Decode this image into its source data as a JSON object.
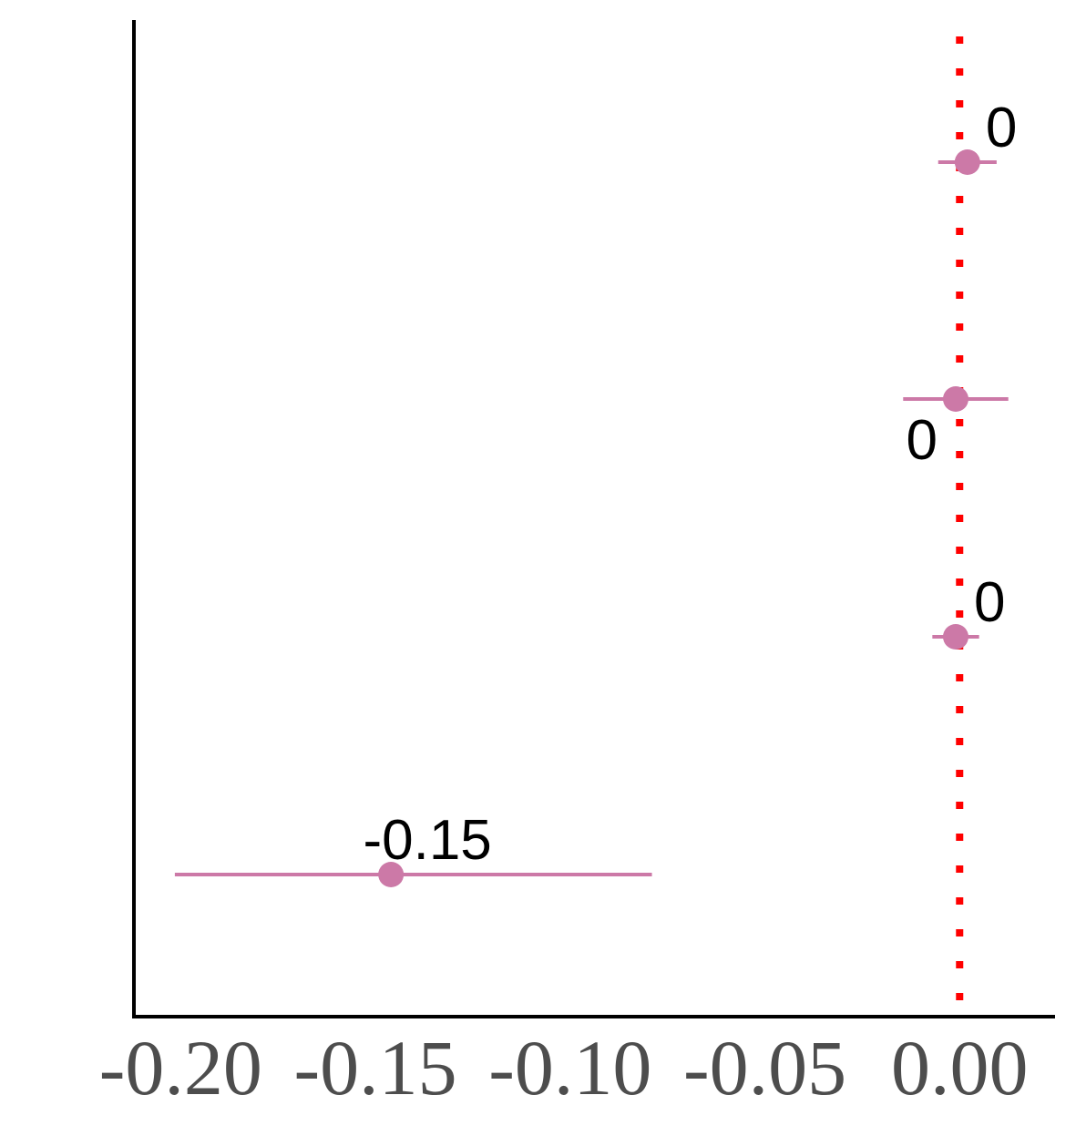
{
  "chart_data": {
    "type": "scatter",
    "subtype": "coefficient-plot",
    "title": "",
    "xlabel": "",
    "ylabel": "",
    "xlim": [
      -0.212,
      0.0245
    ],
    "x_ticks": [
      -0.2,
      -0.15,
      -0.1,
      -0.05,
      0.0
    ],
    "x_tick_labels": [
      "-0.20",
      "-0.15",
      "-0.10",
      "-0.05",
      "0.00"
    ],
    "reference_line": {
      "x": 0.0,
      "style": "dotted",
      "color": "#ff0000"
    },
    "grid": false,
    "legend": "none",
    "point_color": "#cc79a7",
    "points": [
      {
        "estimate": 0.002,
        "ci_low": -0.0055,
        "ci_high": 0.0095,
        "label": "0",
        "label_side": "above-right"
      },
      {
        "estimate": -0.001,
        "ci_low": -0.0145,
        "ci_high": 0.0125,
        "label": "0",
        "label_side": "below-left"
      },
      {
        "estimate": -0.001,
        "ci_low": -0.007,
        "ci_high": 0.005,
        "label": "0",
        "label_side": "above-right"
      },
      {
        "estimate": -0.146,
        "ci_low": -0.2015,
        "ci_high": -0.079,
        "label": "-0.15",
        "label_side": "above"
      }
    ]
  }
}
